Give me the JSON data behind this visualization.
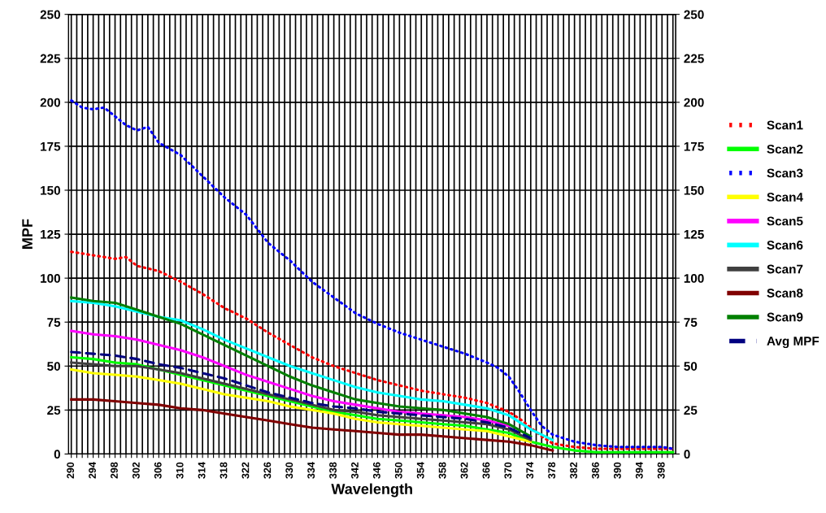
{
  "chart_data": {
    "type": "line",
    "xlabel": "Wavelength",
    "ylabel": "MPF",
    "xlim": [
      289.5,
      400.5
    ],
    "ylim": [
      0,
      250
    ],
    "y2lim": [
      0,
      250
    ],
    "yticks": [
      0,
      25,
      50,
      75,
      100,
      125,
      150,
      175,
      200,
      225,
      250
    ],
    "y2ticks": [
      0,
      25,
      50,
      75,
      100,
      125,
      150,
      175,
      200,
      225,
      250
    ],
    "xticks": [
      290,
      {
        "value": 291,
        "label": null
      },
      {
        "value": 292,
        "label": null
      },
      {
        "value": 293,
        "label": null
      },
      294,
      {
        "value": 295,
        "label": null
      },
      {
        "value": 296,
        "label": null
      },
      {
        "value": 297,
        "label": null
      },
      298,
      {
        "value": 299,
        "label": null
      },
      {
        "value": 300,
        "label": null
      },
      {
        "value": 301,
        "label": null
      },
      302,
      {
        "value": 303,
        "label": null
      },
      {
        "value": 304,
        "label": null
      },
      {
        "value": 305,
        "label": null
      },
      306,
      {
        "value": 307,
        "label": null
      },
      {
        "value": 308,
        "label": null
      },
      {
        "value": 309,
        "label": null
      },
      310,
      {
        "value": 311,
        "label": null
      },
      {
        "value": 312,
        "label": null
      },
      {
        "value": 313,
        "label": null
      },
      314,
      {
        "value": 315,
        "label": null
      },
      {
        "value": 316,
        "label": null
      },
      {
        "value": 317,
        "label": null
      },
      318,
      {
        "value": 319,
        "label": null
      },
      {
        "value": 320,
        "label": null
      },
      {
        "value": 321,
        "label": null
      },
      322,
      {
        "value": 323,
        "label": null
      },
      {
        "value": 324,
        "label": null
      },
      {
        "value": 325,
        "label": null
      },
      326,
      {
        "value": 327,
        "label": null
      },
      {
        "value": 328,
        "label": null
      },
      {
        "value": 329,
        "label": null
      },
      330,
      {
        "value": 331,
        "label": null
      },
      {
        "value": 332,
        "label": null
      },
      {
        "value": 333,
        "label": null
      },
      334,
      {
        "value": 335,
        "label": null
      },
      {
        "value": 336,
        "label": null
      },
      {
        "value": 337,
        "label": null
      },
      338,
      {
        "value": 339,
        "label": null
      },
      {
        "value": 340,
        "label": null
      },
      {
        "value": 341,
        "label": null
      },
      342,
      {
        "value": 343,
        "label": null
      },
      {
        "value": 344,
        "label": null
      },
      {
        "value": 345,
        "label": null
      },
      346,
      {
        "value": 347,
        "label": null
      },
      {
        "value": 348,
        "label": null
      },
      {
        "value": 349,
        "label": null
      },
      350,
      {
        "value": 351,
        "label": null
      },
      {
        "value": 352,
        "label": null
      },
      {
        "value": 353,
        "label": null
      },
      354,
      {
        "value": 355,
        "label": null
      },
      {
        "value": 356,
        "label": null
      },
      {
        "value": 357,
        "label": null
      },
      358,
      {
        "value": 359,
        "label": null
      },
      {
        "value": 360,
        "label": null
      },
      {
        "value": 361,
        "label": null
      },
      362,
      {
        "value": 363,
        "label": null
      },
      {
        "value": 364,
        "label": null
      },
      {
        "value": 365,
        "label": null
      },
      366,
      {
        "value": 367,
        "label": null
      },
      {
        "value": 368,
        "label": null
      },
      {
        "value": 369,
        "label": null
      },
      370,
      {
        "value": 371,
        "label": null
      },
      {
        "value": 372,
        "label": null
      },
      {
        "value": 373,
        "label": null
      },
      374,
      {
        "value": 375,
        "label": null
      },
      {
        "value": 376,
        "label": null
      },
      {
        "value": 377,
        "label": null
      },
      378,
      {
        "value": 379,
        "label": null
      },
      {
        "value": 380,
        "label": null
      },
      {
        "value": 381,
        "label": null
      },
      382,
      {
        "value": 383,
        "label": null
      },
      {
        "value": 384,
        "label": null
      },
      {
        "value": 385,
        "label": null
      },
      386,
      {
        "value": 387,
        "label": null
      },
      {
        "value": 388,
        "label": null
      },
      {
        "value": 389,
        "label": null
      },
      390,
      {
        "value": 391,
        "label": null
      },
      {
        "value": 392,
        "label": null
      },
      {
        "value": 393,
        "label": null
      },
      394,
      {
        "value": 395,
        "label": null
      },
      {
        "value": 396,
        "label": null
      },
      {
        "value": 397,
        "label": null
      },
      398,
      {
        "value": 399,
        "label": null
      },
      {
        "value": 400,
        "label": null
      }
    ],
    "grid": true,
    "legend": "right",
    "marker": "none",
    "series": [
      {
        "name": "Scan1",
        "color": "#ff0000",
        "line_style": "dotted",
        "x": [
          290,
          294,
          298,
          300,
          302,
          306,
          310,
          314,
          318,
          322,
          326,
          330,
          334,
          338,
          342,
          346,
          350,
          354,
          358,
          362,
          366,
          370,
          372,
          374,
          376,
          378,
          382,
          386,
          390,
          394,
          398,
          400
        ],
        "values": [
          115,
          113,
          111,
          112,
          107,
          104,
          98,
          91,
          83,
          77,
          69,
          62,
          55,
          50,
          46,
          42,
          39,
          36,
          34,
          32,
          29,
          24,
          20,
          15,
          10,
          6,
          4,
          3,
          3,
          3,
          3,
          3
        ]
      },
      {
        "name": "Scan2",
        "color": "#00ff00",
        "line_style": "solid",
        "x": [
          290,
          294,
          298,
          302,
          306,
          310,
          314,
          318,
          322,
          326,
          330,
          334,
          338,
          342,
          346,
          350,
          354,
          358,
          362,
          366,
          370,
          374,
          378,
          382,
          386,
          390,
          394,
          398,
          400
        ],
        "values": [
          55,
          54,
          52,
          51,
          48,
          45,
          42,
          39,
          36,
          33,
          30,
          27,
          24,
          22,
          20,
          19,
          18,
          17,
          16,
          14,
          12,
          7,
          4,
          2,
          1,
          1,
          1,
          1,
          1
        ]
      },
      {
        "name": "Scan3",
        "color": "#0000ff",
        "line_style": "dotted",
        "x": [
          290,
          292,
          294,
          296,
          298,
          300,
          302,
          304,
          306,
          310,
          314,
          318,
          322,
          326,
          330,
          334,
          338,
          342,
          346,
          350,
          354,
          358,
          362,
          366,
          368,
          370,
          372,
          374,
          376,
          378,
          382,
          386,
          390,
          394,
          398,
          400
        ],
        "values": [
          201,
          197,
          196,
          197,
          192,
          187,
          184,
          186,
          177,
          170,
          158,
          146,
          136,
          120,
          110,
          98,
          89,
          80,
          74,
          69,
          65,
          61,
          57,
          52,
          49,
          44,
          35,
          25,
          16,
          11,
          7,
          5,
          4,
          4,
          4,
          3
        ]
      },
      {
        "name": "Scan4",
        "color": "#ffff00",
        "line_style": "solid",
        "x": [
          290,
          294,
          298,
          302,
          306,
          310,
          314,
          318,
          322,
          326,
          330,
          334,
          338,
          342,
          346,
          350,
          354,
          358,
          362,
          366,
          370,
          374
        ],
        "values": [
          48,
          46,
          45,
          44,
          42,
          40,
          37,
          34,
          32,
          30,
          27,
          25,
          23,
          20,
          18,
          17,
          16,
          15,
          14,
          13,
          10,
          7
        ]
      },
      {
        "name": "Scan5",
        "color": "#ff00ff",
        "line_style": "solid",
        "x": [
          290,
          294,
          298,
          302,
          306,
          310,
          314,
          318,
          322,
          326,
          330,
          334,
          338,
          342,
          346,
          350,
          354,
          358,
          362,
          366,
          370
        ],
        "values": [
          70,
          68,
          67,
          65,
          62,
          59,
          55,
          50,
          45,
          41,
          37,
          33,
          30,
          28,
          26,
          24,
          23,
          22,
          21,
          19,
          16
        ]
      },
      {
        "name": "Scan6",
        "color": "#00ffff",
        "line_style": "solid",
        "x": [
          290,
          294,
          298,
          302,
          306,
          310,
          314,
          318,
          322,
          326,
          330,
          334,
          338,
          342,
          346,
          350,
          354,
          358,
          362,
          366,
          370,
          374,
          378
        ],
        "values": [
          87,
          86,
          84,
          81,
          78,
          76,
          71,
          65,
          60,
          55,
          50,
          46,
          42,
          38,
          35,
          33,
          31,
          30,
          28,
          26,
          22,
          14,
          8
        ]
      },
      {
        "name": "Scan7",
        "color": "#404040",
        "line_style": "solid",
        "x": [
          290,
          294,
          298,
          302,
          306,
          310,
          314,
          318,
          322,
          326,
          330,
          334,
          338,
          342,
          346,
          350,
          354,
          358,
          362,
          366,
          370,
          374
        ],
        "values": [
          52,
          51,
          50,
          50,
          48,
          46,
          43,
          40,
          37,
          34,
          31,
          28,
          25,
          24,
          22,
          21,
          20,
          19,
          18,
          17,
          14,
          8
        ]
      },
      {
        "name": "Scan8",
        "color": "#800000",
        "line_style": "solid",
        "x": [
          290,
          294,
          298,
          302,
          306,
          310,
          314,
          318,
          322,
          326,
          330,
          334,
          338,
          342,
          346,
          350,
          354,
          358,
          362,
          366,
          370,
          374,
          378
        ],
        "values": [
          31,
          31,
          30,
          29,
          28,
          26,
          25,
          23,
          21,
          19,
          17,
          15,
          14,
          13,
          12,
          11,
          11,
          10,
          9,
          8,
          7,
          5,
          2
        ]
      },
      {
        "name": "Scan9",
        "color": "#008000",
        "line_style": "solid",
        "x": [
          290,
          294,
          298,
          302,
          306,
          310,
          314,
          318,
          322,
          326,
          330,
          334,
          338,
          342,
          346,
          350,
          354,
          358,
          362,
          366,
          370,
          374
        ],
        "values": [
          89,
          87,
          86,
          82,
          78,
          74,
          68,
          62,
          56,
          50,
          44,
          39,
          35,
          31,
          29,
          27,
          26,
          25,
          23,
          21,
          17,
          10
        ]
      },
      {
        "name": "Avg MPF",
        "color": "#000080",
        "line_style": "dashed",
        "x": [
          290,
          294,
          298,
          302,
          306,
          310,
          314,
          318,
          322,
          326,
          330,
          334,
          338,
          342,
          346,
          350,
          354,
          358,
          362,
          366,
          370,
          374
        ],
        "values": [
          58,
          57,
          56,
          54,
          51,
          49,
          46,
          43,
          39,
          35,
          32,
          29,
          27,
          26,
          24,
          23,
          22,
          21,
          20,
          18,
          15,
          9
        ]
      }
    ]
  }
}
